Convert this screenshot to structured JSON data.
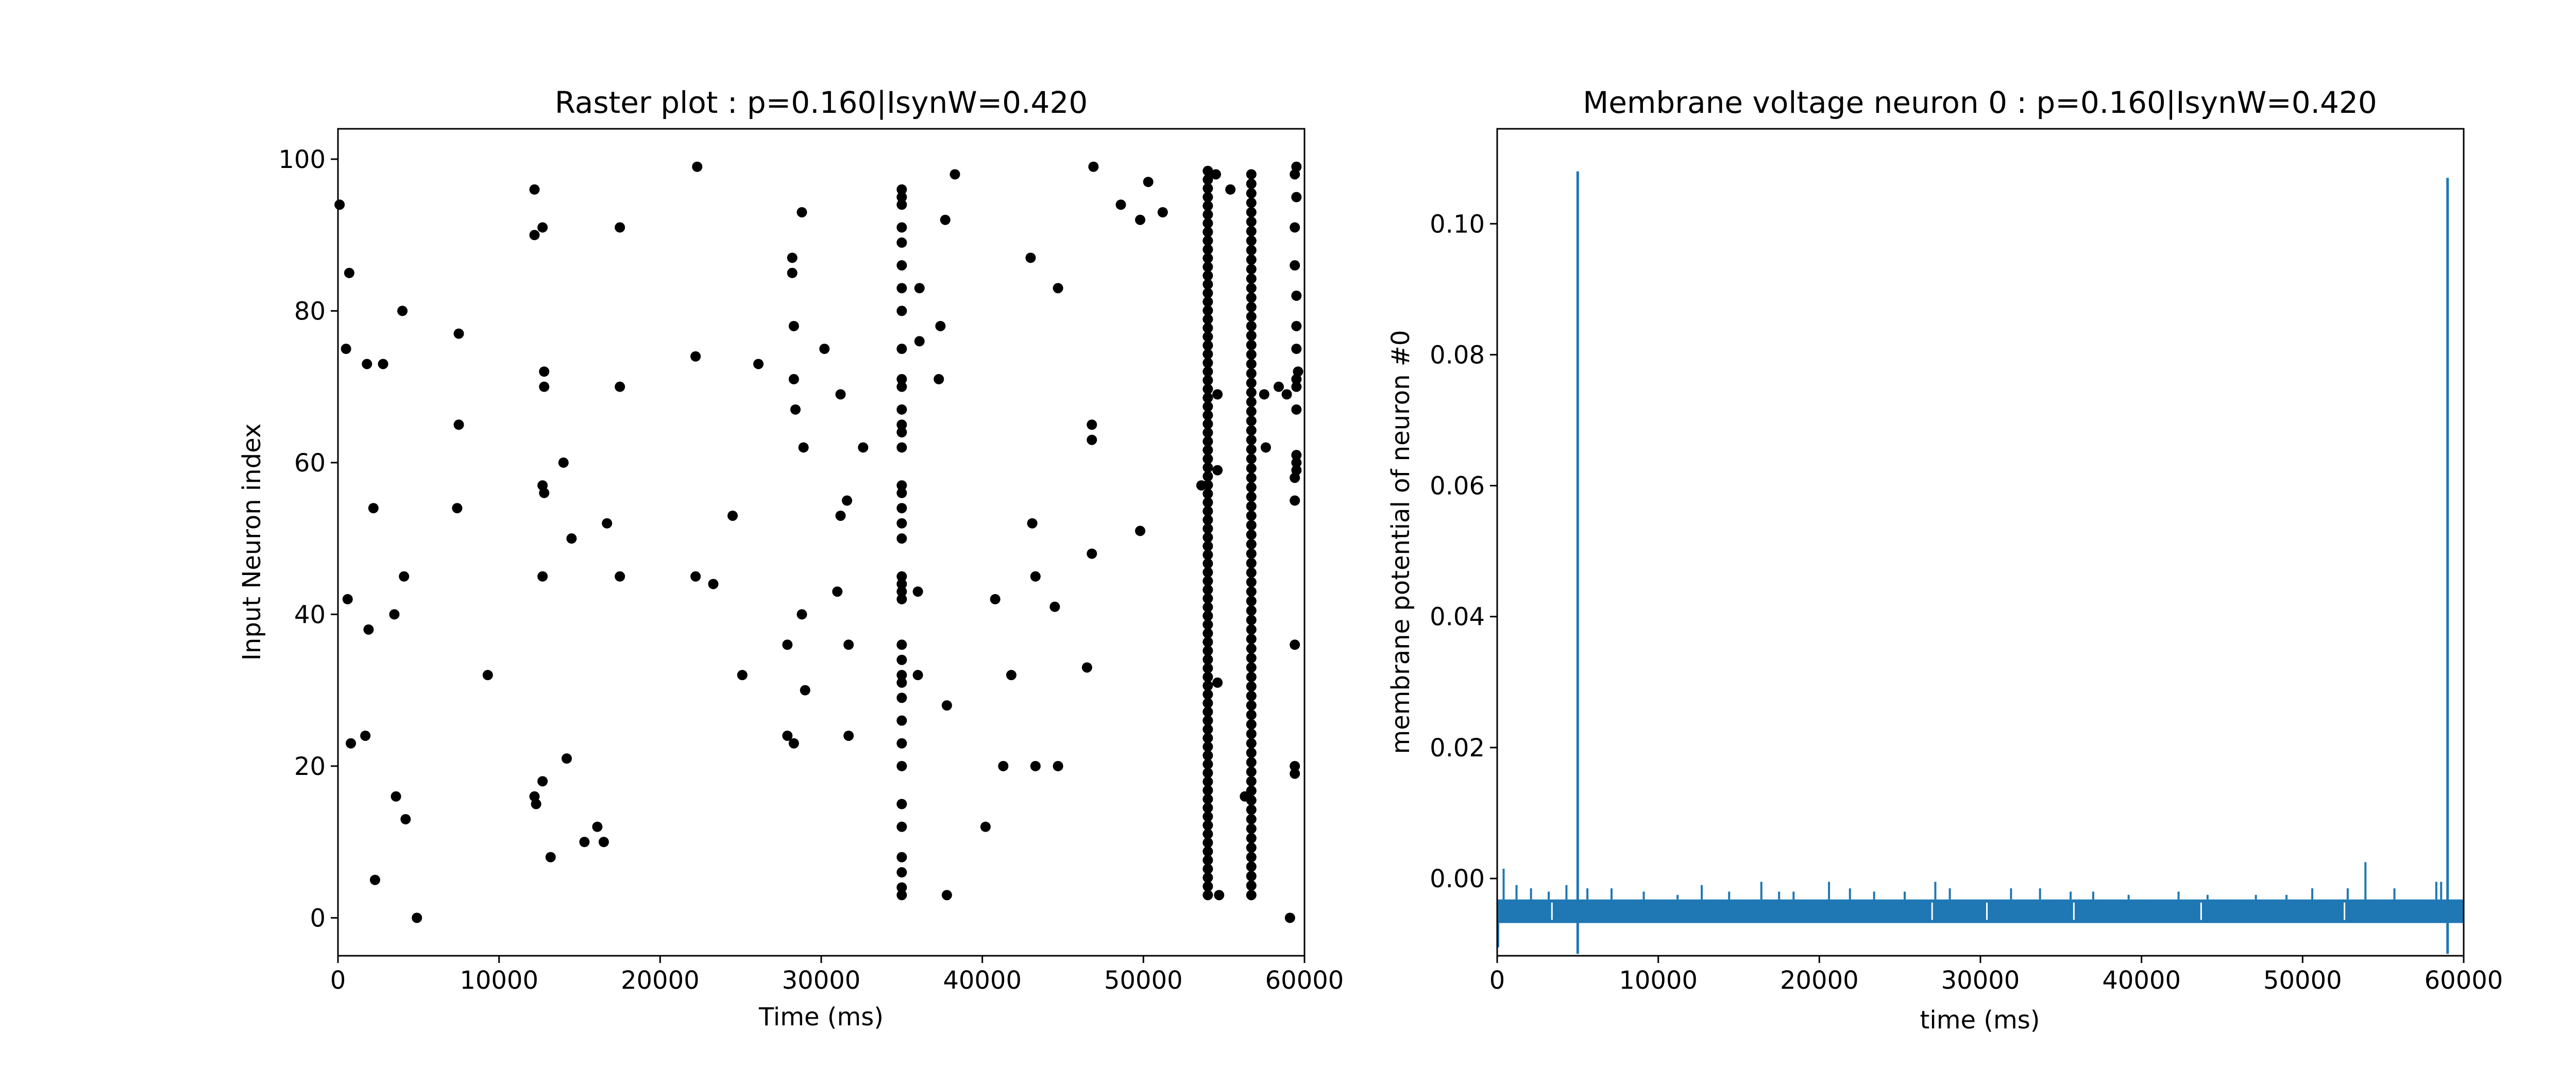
{
  "chart_data": [
    {
      "type": "scatter",
      "title": "Raster plot : p=0.160|IsynW=0.420",
      "xlabel": "Time (ms)",
      "ylabel": "Input Neuron index",
      "xlim": [
        0,
        60000
      ],
      "ylim": [
        -5,
        104
      ],
      "xticks": [
        0,
        10000,
        20000,
        30000,
        40000,
        50000,
        60000
      ],
      "xtick_labels": [
        "0",
        "10000",
        "20000",
        "30000",
        "40000",
        "50000",
        "60000"
      ],
      "yticks": [
        0,
        20,
        40,
        60,
        80,
        100
      ],
      "ytick_labels": [
        "0",
        "20",
        "40",
        "60",
        "80",
        "100"
      ],
      "grid": false,
      "marker_color": "#000000",
      "series": [
        {
          "points": [
            [
              100,
              94
            ],
            [
              700,
              85
            ],
            [
              500,
              75
            ],
            [
              600,
              42
            ],
            [
              800,
              23
            ],
            [
              1800,
              73
            ],
            [
              1700,
              24
            ],
            [
              1900,
              38
            ],
            [
              2200,
              54
            ],
            [
              2300,
              5
            ],
            [
              2800,
              73
            ],
            [
              3500,
              40
            ],
            [
              3600,
              16
            ],
            [
              4000,
              80
            ],
            [
              4100,
              45
            ],
            [
              4200,
              13
            ],
            [
              4900,
              0
            ],
            [
              7500,
              77
            ],
            [
              7500,
              65
            ],
            [
              7400,
              54
            ],
            [
              9300,
              32
            ],
            [
              12200,
              96
            ],
            [
              12200,
              90
            ],
            [
              12700,
              91
            ],
            [
              12200,
              16
            ],
            [
              12300,
              15
            ],
            [
              12800,
              72
            ],
            [
              12800,
              70
            ],
            [
              12700,
              57
            ],
            [
              12800,
              56
            ],
            [
              12700,
              45
            ],
            [
              12700,
              18
            ],
            [
              13200,
              8
            ],
            [
              14000,
              60
            ],
            [
              14200,
              21
            ],
            [
              14500,
              50
            ],
            [
              15300,
              10
            ],
            [
              16100,
              12
            ],
            [
              16700,
              52
            ],
            [
              16500,
              10
            ],
            [
              17500,
              91
            ],
            [
              17500,
              70
            ],
            [
              17500,
              45
            ],
            [
              22200,
              74
            ],
            [
              22200,
              45
            ],
            [
              22300,
              99
            ],
            [
              23300,
              44
            ],
            [
              24500,
              53
            ],
            [
              25100,
              32
            ],
            [
              26100,
              73
            ],
            [
              27900,
              36
            ],
            [
              27900,
              24
            ],
            [
              28200,
              87
            ],
            [
              28200,
              85
            ],
            [
              28300,
              78
            ],
            [
              28300,
              71
            ],
            [
              28400,
              67
            ],
            [
              28300,
              23
            ],
            [
              28800,
              93
            ],
            [
              28900,
              62
            ],
            [
              28800,
              40
            ],
            [
              29000,
              30
            ],
            [
              30200,
              75
            ],
            [
              31000,
              43
            ],
            [
              31200,
              53
            ],
            [
              31200,
              69
            ],
            [
              31600,
              55
            ],
            [
              31700,
              36
            ],
            [
              31700,
              24
            ],
            [
              32600,
              62
            ],
            [
              35000,
              96
            ],
            [
              35000,
              95
            ],
            [
              35000,
              94
            ],
            [
              35000,
              91
            ],
            [
              35000,
              89
            ],
            [
              35000,
              86
            ],
            [
              35000,
              83
            ],
            [
              35000,
              80
            ],
            [
              35000,
              75
            ],
            [
              35000,
              71
            ],
            [
              35000,
              70
            ],
            [
              35000,
              67
            ],
            [
              35000,
              65
            ],
            [
              35000,
              64
            ],
            [
              35000,
              62
            ],
            [
              35000,
              57
            ],
            [
              35000,
              56
            ],
            [
              35000,
              54
            ],
            [
              35000,
              52
            ],
            [
              35000,
              50
            ],
            [
              35000,
              45
            ],
            [
              35000,
              44
            ],
            [
              35000,
              43
            ],
            [
              35000,
              42
            ],
            [
              35000,
              36
            ],
            [
              35000,
              34
            ],
            [
              35000,
              32
            ],
            [
              35000,
              31
            ],
            [
              35000,
              29
            ],
            [
              35000,
              26
            ],
            [
              35000,
              23
            ],
            [
              35000,
              20
            ],
            [
              35000,
              15
            ],
            [
              35000,
              12
            ],
            [
              35000,
              8
            ],
            [
              35000,
              6
            ],
            [
              35000,
              4
            ],
            [
              35000,
              3
            ],
            [
              36000,
              43
            ],
            [
              36000,
              32
            ],
            [
              36100,
              76
            ],
            [
              36100,
              83
            ],
            [
              37400,
              78
            ],
            [
              37300,
              71
            ],
            [
              37700,
              92
            ],
            [
              37800,
              28
            ],
            [
              37800,
              3
            ],
            [
              38300,
              98
            ],
            [
              40200,
              12
            ],
            [
              40800,
              42
            ],
            [
              41300,
              20
            ],
            [
              41800,
              32
            ],
            [
              43000,
              87
            ],
            [
              43100,
              52
            ],
            [
              43300,
              45
            ],
            [
              43300,
              20
            ],
            [
              44500,
              41
            ],
            [
              44700,
              83
            ],
            [
              44700,
              20
            ],
            [
              46500,
              33
            ],
            [
              46800,
              65
            ],
            [
              46800,
              63
            ],
            [
              46800,
              48
            ],
            [
              46900,
              99
            ],
            [
              48600,
              94
            ],
            [
              49800,
              92
            ],
            [
              49800,
              51
            ],
            [
              50300,
              97
            ],
            [
              51200,
              93
            ],
            [
              53600,
              57
            ],
            [
              54500,
              98
            ],
            [
              54600,
              69
            ],
            [
              54600,
              59
            ],
            [
              54600,
              31
            ],
            [
              54700,
              3
            ],
            [
              55400,
              96
            ],
            [
              56300,
              16
            ],
            [
              57500,
              69
            ],
            [
              57600,
              62
            ],
            [
              58400,
              70
            ],
            [
              58900,
              69
            ],
            [
              59100,
              0
            ],
            [
              59500,
              99
            ],
            [
              59400,
              98
            ],
            [
              59500,
              95
            ],
            [
              59400,
              91
            ],
            [
              59400,
              86
            ],
            [
              59500,
              82
            ],
            [
              59500,
              78
            ],
            [
              59500,
              75
            ],
            [
              59600,
              72
            ],
            [
              59500,
              71
            ],
            [
              59500,
              70
            ],
            [
              59500,
              67
            ],
            [
              59500,
              61
            ],
            [
              59500,
              60
            ],
            [
              59500,
              59
            ],
            [
              59400,
              58
            ],
            [
              59400,
              55
            ],
            [
              59400,
              36
            ],
            [
              59400,
              20
            ],
            [
              59400,
              19
            ]
          ],
          "bands": [
            {
              "x": 54000,
              "from": 3,
              "to": 99,
              "step": 1.15
            },
            {
              "x": 56700,
              "from": 3,
              "to": 99,
              "step": 1.25
            }
          ]
        }
      ]
    },
    {
      "type": "line",
      "title": "Membrane voltage neuron 0 : p=0.160|IsynW=0.420",
      "xlabel": "time (ms)",
      "ylabel": "membrane potential of neuron #0",
      "xlim": [
        0,
        60000
      ],
      "ylim": [
        -0.0118,
        0.1145
      ],
      "xticks": [
        0,
        10000,
        20000,
        30000,
        40000,
        50000,
        60000
      ],
      "xtick_labels": [
        "0",
        "10000",
        "20000",
        "30000",
        "40000",
        "50000",
        "60000"
      ],
      "yticks": [
        0.0,
        0.02,
        0.04,
        0.06,
        0.08,
        0.1
      ],
      "ytick_labels": [
        "0.00",
        "0.02",
        "0.04",
        "0.06",
        "0.08",
        "0.10"
      ],
      "grid": false,
      "line_color": "#1f77b4",
      "baseline_band": [
        -0.0068,
        -0.0032
      ],
      "spikes": [
        {
          "x": 5000,
          "y": 0.108,
          "min": -0.0115
        },
        {
          "x": 59000,
          "y": 0.107,
          "min": -0.0115
        }
      ],
      "bumps": [
        [
          400,
          0.0015
        ],
        [
          1200,
          -0.001
        ],
        [
          2100,
          -0.0015
        ],
        [
          3200,
          -0.002
        ],
        [
          4300,
          -0.001
        ],
        [
          5600,
          -0.0015
        ],
        [
          7100,
          -0.0015
        ],
        [
          9100,
          -0.002
        ],
        [
          11200,
          -0.0025
        ],
        [
          12700,
          -0.001
        ],
        [
          14400,
          -0.002
        ],
        [
          16400,
          -0.0005
        ],
        [
          17500,
          -0.002
        ],
        [
          18400,
          -0.002
        ],
        [
          20600,
          -0.0005
        ],
        [
          21900,
          -0.0015
        ],
        [
          23400,
          -0.002
        ],
        [
          25300,
          -0.002
        ],
        [
          27200,
          -0.0005
        ],
        [
          28100,
          -0.0015
        ],
        [
          31900,
          -0.0015
        ],
        [
          33700,
          -0.0015
        ],
        [
          35600,
          -0.002
        ],
        [
          37000,
          -0.002
        ],
        [
          39200,
          -0.0025
        ],
        [
          42300,
          -0.002
        ],
        [
          44100,
          -0.0025
        ],
        [
          47100,
          -0.0025
        ],
        [
          49000,
          -0.0025
        ],
        [
          50600,
          -0.0015
        ],
        [
          52800,
          -0.0015
        ],
        [
          53900,
          0.0025
        ],
        [
          55700,
          -0.0015
        ],
        [
          58300,
          -0.0005
        ],
        [
          58600,
          -0.0005
        ]
      ],
      "gaps": [
        3400,
        27000,
        30400,
        35800,
        43700,
        52600
      ]
    }
  ]
}
